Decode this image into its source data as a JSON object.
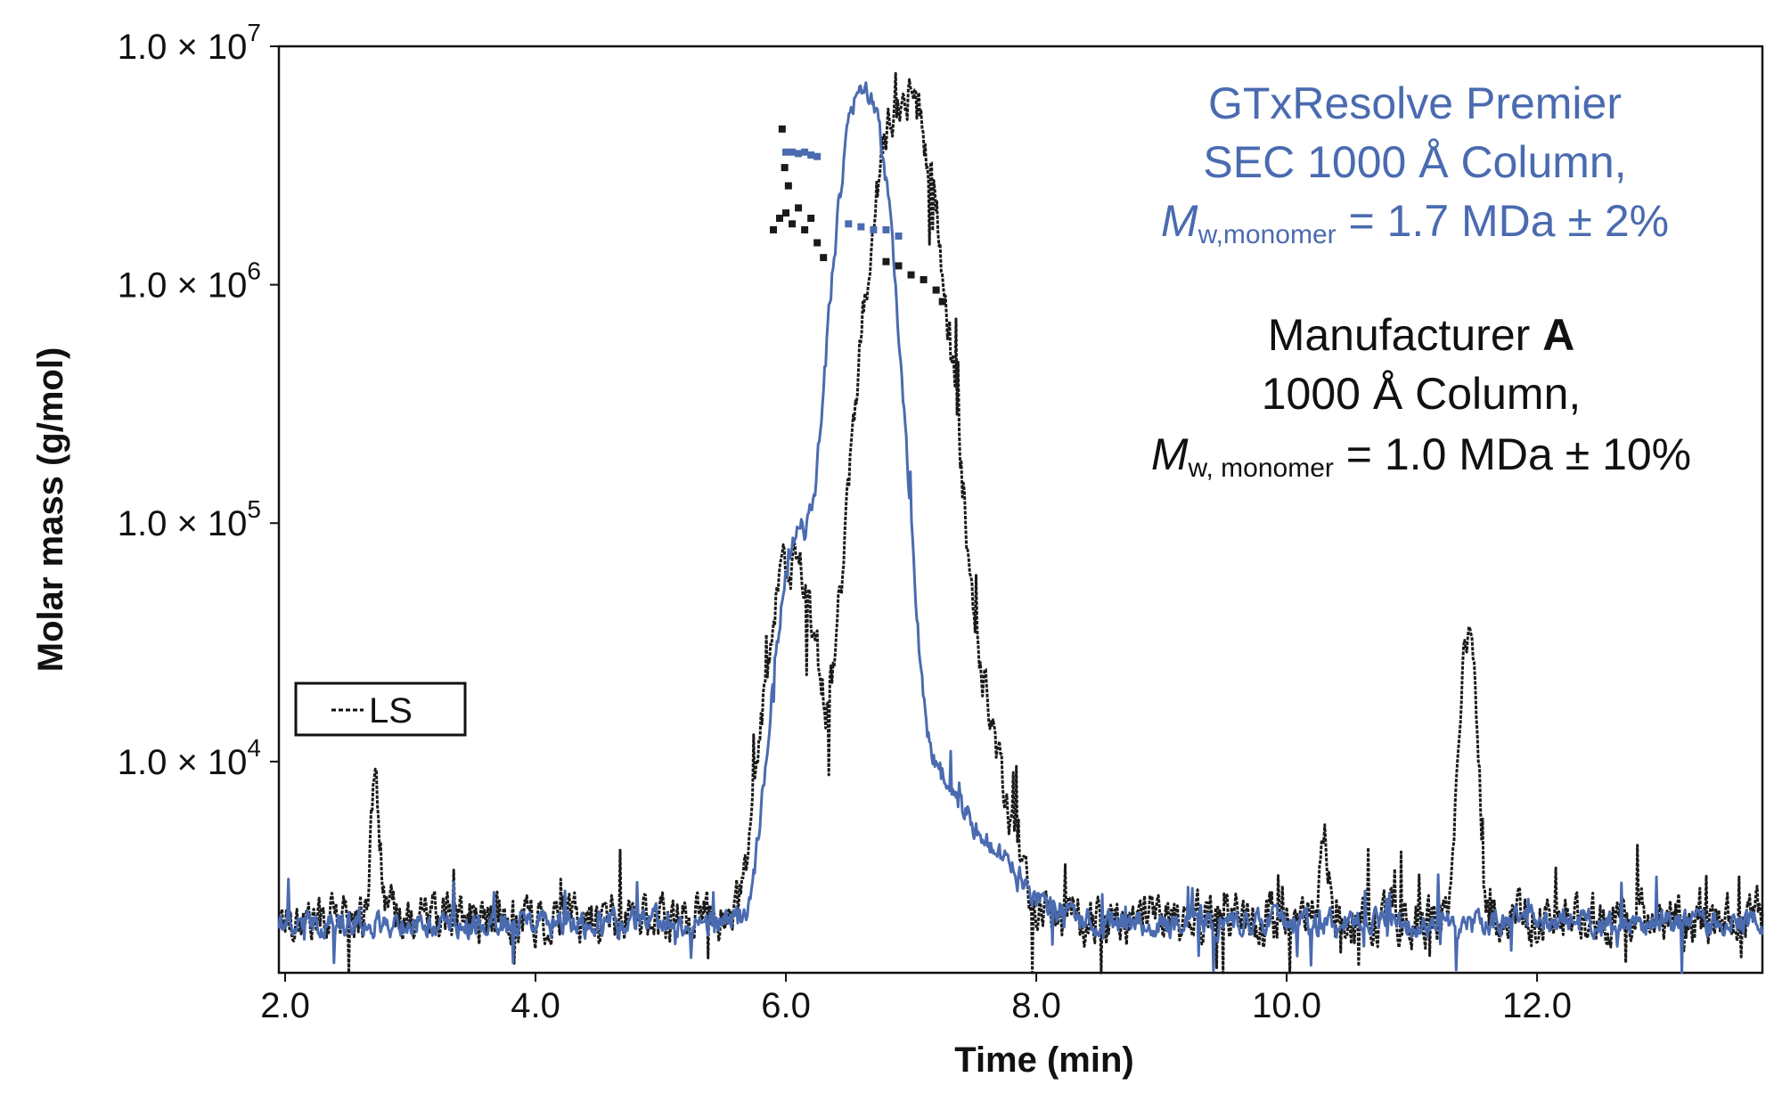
{
  "chart_data": {
    "type": "line",
    "title": "",
    "xlabel": "Time (min)",
    "ylabel": "Molar mass (g/mol)",
    "xlim": [
      1.95,
      13.8
    ],
    "ylim": [
      1300,
      10000000
    ],
    "yscale": "log",
    "x_ticks": [
      {
        "value": 2.0,
        "label": "2.0"
      },
      {
        "value": 4.0,
        "label": "4.0"
      },
      {
        "value": 6.0,
        "label": "6.0"
      },
      {
        "value": 8.0,
        "label": "8.0"
      },
      {
        "value": 10.0,
        "label": "10.0"
      },
      {
        "value": 12.0,
        "label": "12.0"
      }
    ],
    "y_ticks": [
      {
        "value": 10000000,
        "mantissa": "1.0 × 10",
        "exp": "7"
      },
      {
        "value": 1000000,
        "mantissa": "1.0 × 10",
        "exp": "6"
      },
      {
        "value": 100000,
        "mantissa": "1.0 × 10",
        "exp": "5"
      },
      {
        "value": 10000,
        "mantissa": "1.0 × 10",
        "exp": "4"
      }
    ],
    "legend": {
      "position": "left",
      "label": "LS"
    },
    "annotations": {
      "blue": {
        "line1": "GTxResolve Premier",
        "line2": "SEC 1000 Å Column,",
        "m": "M",
        "sub": "w,monomer",
        "rest": " = 1.7 MDa ± 2%"
      },
      "black": {
        "line1a": "Manufacturer ",
        "line1b": "A",
        "line2": "1000 Å Column,",
        "m": "M",
        "sub": "w, monomer",
        "rest": " = 1.0 MDa ± 10%"
      }
    },
    "series": [
      {
        "name": "LS (Manufacturer A)",
        "color": "#1a1a1a",
        "baseline": {
          "level": 2200,
          "noise": 0.26,
          "seed": 17
        },
        "peaks": [
          {
            "center": 6.0,
            "width": 0.12,
            "height": 50000
          },
          {
            "center": 6.15,
            "width": 0.1,
            "height": 30000
          },
          {
            "center": 6.45,
            "width": 0.08,
            "height": 12000
          },
          {
            "center": 6.95,
            "width": 0.16,
            "height": 6500000
          },
          {
            "center": 7.25,
            "width": 0.25,
            "height": 40000
          },
          {
            "center": 2.72,
            "width": 0.03,
            "height": 6000
          },
          {
            "center": 11.45,
            "width": 0.05,
            "height": 36000
          },
          {
            "center": 10.3,
            "width": 0.03,
            "height": 2500
          }
        ],
        "molar_mass_points": [
          {
            "x": 5.9,
            "y": 1700000.0
          },
          {
            "x": 5.95,
            "y": 1900000.0
          },
          {
            "x": 6.0,
            "y": 2000000.0
          },
          {
            "x": 6.05,
            "y": 1800000.0
          },
          {
            "x": 6.1,
            "y": 2100000.0
          },
          {
            "x": 6.15,
            "y": 1700000.0
          },
          {
            "x": 6.2,
            "y": 1900000.0
          },
          {
            "x": 6.25,
            "y": 1500000.0
          },
          {
            "x": 6.3,
            "y": 1300000.0
          },
          {
            "x": 5.97,
            "y": 4500000.0
          },
          {
            "x": 5.99,
            "y": 3100000.0
          },
          {
            "x": 6.02,
            "y": 2600000.0
          },
          {
            "x": 6.8,
            "y": 1250000.0
          },
          {
            "x": 6.9,
            "y": 1200000.0
          },
          {
            "x": 7.0,
            "y": 1100000.0
          },
          {
            "x": 7.1,
            "y": 1050000.0
          },
          {
            "x": 7.2,
            "y": 950000.0
          },
          {
            "x": 7.25,
            "y": 850000.0
          }
        ]
      },
      {
        "name": "LS (GTxResolve Premier)",
        "color": "#4a6bb0",
        "baseline": {
          "level": 2100,
          "noise": 0.14,
          "seed": 41
        },
        "peaks": [
          {
            "center": 6.12,
            "width": 0.13,
            "height": 85000
          },
          {
            "center": 6.62,
            "width": 0.13,
            "height": 6800000
          },
          {
            "center": 7.0,
            "width": 0.3,
            "height": 8000
          },
          {
            "center": 7.6,
            "width": 0.3,
            "height": 1500
          }
        ],
        "molar_mass_points": [
          {
            "x": 6.0,
            "y": 3600000.0
          },
          {
            "x": 6.05,
            "y": 3600000.0
          },
          {
            "x": 6.1,
            "y": 3550000.0
          },
          {
            "x": 6.15,
            "y": 3600000.0
          },
          {
            "x": 6.2,
            "y": 3500000.0
          },
          {
            "x": 6.25,
            "y": 3450000.0
          },
          {
            "x": 6.5,
            "y": 1800000.0
          },
          {
            "x": 6.6,
            "y": 1750000.0
          },
          {
            "x": 6.7,
            "y": 1700000.0
          },
          {
            "x": 6.8,
            "y": 1700000.0
          },
          {
            "x": 6.9,
            "y": 1600000.0
          }
        ]
      }
    ]
  }
}
